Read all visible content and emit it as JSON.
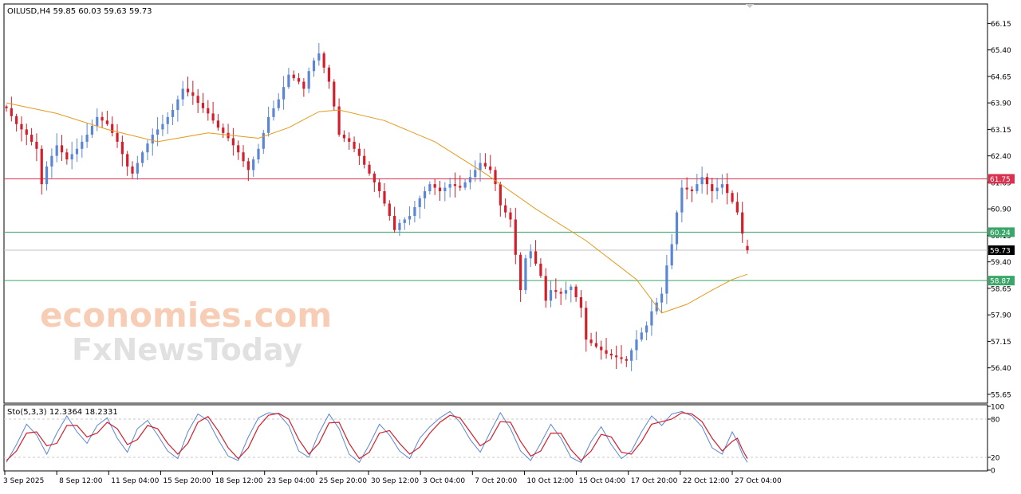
{
  "chart_data": {
    "type": "candlestick",
    "instrument": {
      "header": "OILUSD,H4  59.85 60.03 59.63 59.73",
      "symbol": "OILUSD",
      "timeframe": "H4",
      "open": 59.85,
      "high": 60.03,
      "low": 59.63,
      "close": 59.73
    },
    "price_axis": {
      "ylim": [
        55.4,
        66.7
      ],
      "ticks": [
        "66.15",
        "65.40",
        "64.65",
        "63.90",
        "63.15",
        "62.40",
        "61.65",
        "60.90",
        "60.15",
        "59.40",
        "58.65",
        "57.90",
        "57.15",
        "56.40",
        "55.65"
      ]
    },
    "time_axis_labels": [
      "3 Sep 2025",
      "8 Sep 12:00",
      "11 Sep 04:00",
      "15 Sep 20:00",
      "18 Sep 12:00",
      "23 Sep 04:00",
      "25 Sep 20:00",
      "30 Sep 12:00",
      "3 Oct 04:00",
      "7 Oct 20:00",
      "10 Oct 12:00",
      "15 Oct 04:00",
      "17 Oct 20:00",
      "22 Oct 12:00",
      "27 Oct 04:00"
    ],
    "price_path": [
      [
        0,
        63.75
      ],
      [
        2,
        63.3
      ],
      [
        4,
        63.0
      ],
      [
        6,
        62.6
      ],
      [
        7,
        61.6
      ],
      [
        8,
        62.1
      ],
      [
        10,
        62.7
      ],
      [
        12,
        62.3
      ],
      [
        14,
        62.6
      ],
      [
        16,
        63.0
      ],
      [
        18,
        63.5
      ],
      [
        20,
        63.3
      ],
      [
        22,
        62.8
      ],
      [
        24,
        62.1
      ],
      [
        25,
        61.9
      ],
      [
        27,
        62.5
      ],
      [
        29,
        63.0
      ],
      [
        31,
        63.3
      ],
      [
        33,
        63.7
      ],
      [
        35,
        64.3
      ],
      [
        37,
        64.1
      ],
      [
        38,
        63.9
      ],
      [
        40,
        63.6
      ],
      [
        42,
        63.2
      ],
      [
        44,
        62.9
      ],
      [
        46,
        62.5
      ],
      [
        48,
        62.0
      ],
      [
        50,
        62.6
      ],
      [
        52,
        63.5
      ],
      [
        54,
        64.0
      ],
      [
        56,
        64.7
      ],
      [
        58,
        64.5
      ],
      [
        59,
        64.3
      ],
      [
        60,
        64.8
      ],
      [
        61,
        65.1
      ],
      [
        62,
        65.3
      ],
      [
        63,
        64.9
      ],
      [
        64,
        64.5
      ],
      [
        65,
        63.8
      ],
      [
        66,
        63.0
      ],
      [
        68,
        62.8
      ],
      [
        70,
        62.4
      ],
      [
        72,
        61.9
      ],
      [
        74,
        61.4
      ],
      [
        76,
        60.7
      ],
      [
        77,
        60.3
      ],
      [
        78,
        60.5
      ],
      [
        80,
        60.7
      ],
      [
        82,
        61.2
      ],
      [
        84,
        61.6
      ],
      [
        86,
        61.4
      ],
      [
        88,
        61.6
      ],
      [
        90,
        61.5
      ],
      [
        92,
        61.8
      ],
      [
        94,
        62.2
      ],
      [
        96,
        62.0
      ],
      [
        97,
        61.6
      ],
      [
        98,
        61.0
      ],
      [
        100,
        60.6
      ],
      [
        101,
        59.6
      ],
      [
        102,
        58.6
      ],
      [
        103,
        59.5
      ],
      [
        104,
        59.7
      ],
      [
        106,
        59.0
      ],
      [
        107,
        58.3
      ],
      [
        108,
        58.6
      ],
      [
        110,
        58.5
      ],
      [
        112,
        58.7
      ],
      [
        114,
        58.1
      ],
      [
        115,
        57.2
      ],
      [
        117,
        57.0
      ],
      [
        119,
        56.8
      ],
      [
        121,
        56.7
      ],
      [
        123,
        56.6
      ],
      [
        125,
        57.2
      ],
      [
        127,
        57.6
      ],
      [
        128,
        58.0
      ],
      [
        130,
        58.5
      ],
      [
        131,
        59.3
      ],
      [
        132,
        59.9
      ],
      [
        133,
        60.8
      ],
      [
        134,
        61.5
      ],
      [
        136,
        61.4
      ],
      [
        138,
        61.8
      ],
      [
        140,
        61.4
      ],
      [
        142,
        61.6
      ],
      [
        144,
        61.1
      ],
      [
        145,
        60.8
      ],
      [
        146,
        60.2
      ],
      [
        147,
        59.73
      ]
    ],
    "moving_average": {
      "color": "#e39a1c",
      "points": [
        [
          0,
          63.9
        ],
        [
          10,
          63.6
        ],
        [
          20,
          63.15
        ],
        [
          30,
          62.8
        ],
        [
          40,
          63.05
        ],
        [
          50,
          62.9
        ],
        [
          56,
          63.2
        ],
        [
          62,
          63.65
        ],
        [
          66,
          63.7
        ],
        [
          75,
          63.4
        ],
        [
          85,
          62.8
        ],
        [
          95,
          61.9
        ],
        [
          105,
          60.9
        ],
        [
          115,
          60.0
        ],
        [
          125,
          58.9
        ],
        [
          130,
          57.95
        ],
        [
          135,
          58.2
        ],
        [
          140,
          58.6
        ],
        [
          144,
          58.9
        ],
        [
          147,
          59.05
        ]
      ]
    },
    "levels": [
      {
        "label": "61.75",
        "value": 61.75,
        "color": "#d9314e"
      },
      {
        "label": "60.24",
        "value": 60.24,
        "color": "#3aa66a"
      },
      {
        "label": "59.73",
        "value": 59.73,
        "color": "#000000",
        "current": true
      },
      {
        "label": "58.87",
        "value": 58.87,
        "color": "#3aa66a"
      }
    ],
    "colors": {
      "bull": "#5b86d6",
      "bear": "#d41e2a",
      "grid": "#b8b8b8"
    }
  },
  "oscillator": {
    "header": "Sto(5,3,3) 12.3364 18.2331",
    "ylim": [
      0,
      100
    ],
    "ticks": [
      "100",
      "80",
      "20",
      "0"
    ],
    "levels": [
      80,
      20
    ],
    "main_color": "#5b86d6",
    "signal_color": "#d41e2a",
    "main": [
      [
        0,
        12
      ],
      [
        2,
        40
      ],
      [
        4,
        72
      ],
      [
        6,
        55
      ],
      [
        8,
        25
      ],
      [
        10,
        58
      ],
      [
        12,
        85
      ],
      [
        14,
        60
      ],
      [
        16,
        42
      ],
      [
        18,
        70
      ],
      [
        20,
        82
      ],
      [
        22,
        50
      ],
      [
        24,
        28
      ],
      [
        26,
        65
      ],
      [
        28,
        78
      ],
      [
        30,
        55
      ],
      [
        32,
        30
      ],
      [
        34,
        18
      ],
      [
        36,
        60
      ],
      [
        38,
        88
      ],
      [
        40,
        78
      ],
      [
        42,
        48
      ],
      [
        44,
        22
      ],
      [
        46,
        15
      ],
      [
        48,
        52
      ],
      [
        50,
        82
      ],
      [
        52,
        90
      ],
      [
        54,
        88
      ],
      [
        56,
        70
      ],
      [
        58,
        30
      ],
      [
        60,
        20
      ],
      [
        62,
        58
      ],
      [
        64,
        88
      ],
      [
        66,
        65
      ],
      [
        68,
        25
      ],
      [
        70,
        12
      ],
      [
        72,
        40
      ],
      [
        74,
        72
      ],
      [
        76,
        55
      ],
      [
        78,
        30
      ],
      [
        80,
        18
      ],
      [
        82,
        50
      ],
      [
        84,
        68
      ],
      [
        86,
        82
      ],
      [
        88,
        92
      ],
      [
        90,
        75
      ],
      [
        92,
        48
      ],
      [
        94,
        28
      ],
      [
        96,
        60
      ],
      [
        98,
        90
      ],
      [
        100,
        65
      ],
      [
        102,
        30
      ],
      [
        104,
        15
      ],
      [
        106,
        42
      ],
      [
        108,
        72
      ],
      [
        110,
        50
      ],
      [
        112,
        20
      ],
      [
        114,
        12
      ],
      [
        116,
        45
      ],
      [
        118,
        68
      ],
      [
        120,
        40
      ],
      [
        122,
        18
      ],
      [
        124,
        30
      ],
      [
        126,
        60
      ],
      [
        128,
        85
      ],
      [
        130,
        70
      ],
      [
        132,
        88
      ],
      [
        134,
        92
      ],
      [
        136,
        85
      ],
      [
        138,
        68
      ],
      [
        140,
        35
      ],
      [
        142,
        25
      ],
      [
        144,
        60
      ],
      [
        145,
        45
      ],
      [
        146,
        25
      ],
      [
        147,
        12
      ]
    ],
    "signal": [
      [
        0,
        15
      ],
      [
        2,
        30
      ],
      [
        4,
        58
      ],
      [
        6,
        60
      ],
      [
        8,
        38
      ],
      [
        10,
        42
      ],
      [
        12,
        70
      ],
      [
        14,
        70
      ],
      [
        16,
        52
      ],
      [
        18,
        58
      ],
      [
        20,
        75
      ],
      [
        22,
        65
      ],
      [
        24,
        40
      ],
      [
        26,
        48
      ],
      [
        28,
        70
      ],
      [
        30,
        65
      ],
      [
        32,
        42
      ],
      [
        34,
        25
      ],
      [
        36,
        42
      ],
      [
        38,
        75
      ],
      [
        40,
        84
      ],
      [
        42,
        62
      ],
      [
        44,
        35
      ],
      [
        46,
        18
      ],
      [
        48,
        35
      ],
      [
        50,
        68
      ],
      [
        52,
        86
      ],
      [
        54,
        89
      ],
      [
        56,
        80
      ],
      [
        58,
        48
      ],
      [
        60,
        25
      ],
      [
        62,
        42
      ],
      [
        64,
        74
      ],
      [
        66,
        75
      ],
      [
        68,
        42
      ],
      [
        70,
        18
      ],
      [
        72,
        28
      ],
      [
        74,
        58
      ],
      [
        76,
        62
      ],
      [
        78,
        42
      ],
      [
        80,
        25
      ],
      [
        82,
        36
      ],
      [
        84,
        58
      ],
      [
        86,
        75
      ],
      [
        88,
        86
      ],
      [
        90,
        82
      ],
      [
        92,
        60
      ],
      [
        94,
        38
      ],
      [
        96,
        48
      ],
      [
        98,
        76
      ],
      [
        100,
        75
      ],
      [
        102,
        45
      ],
      [
        104,
        22
      ],
      [
        106,
        30
      ],
      [
        108,
        58
      ],
      [
        110,
        58
      ],
      [
        112,
        32
      ],
      [
        114,
        15
      ],
      [
        116,
        30
      ],
      [
        118,
        56
      ],
      [
        120,
        52
      ],
      [
        122,
        28
      ],
      [
        124,
        25
      ],
      [
        126,
        45
      ],
      [
        128,
        72
      ],
      [
        130,
        76
      ],
      [
        132,
        80
      ],
      [
        134,
        90
      ],
      [
        136,
        88
      ],
      [
        138,
        76
      ],
      [
        140,
        50
      ],
      [
        142,
        30
      ],
      [
        144,
        45
      ],
      [
        145,
        50
      ],
      [
        146,
        32
      ],
      [
        147,
        18
      ]
    ]
  },
  "watermark": {
    "line1": "economies.com",
    "line2": "FxNewsToday"
  }
}
